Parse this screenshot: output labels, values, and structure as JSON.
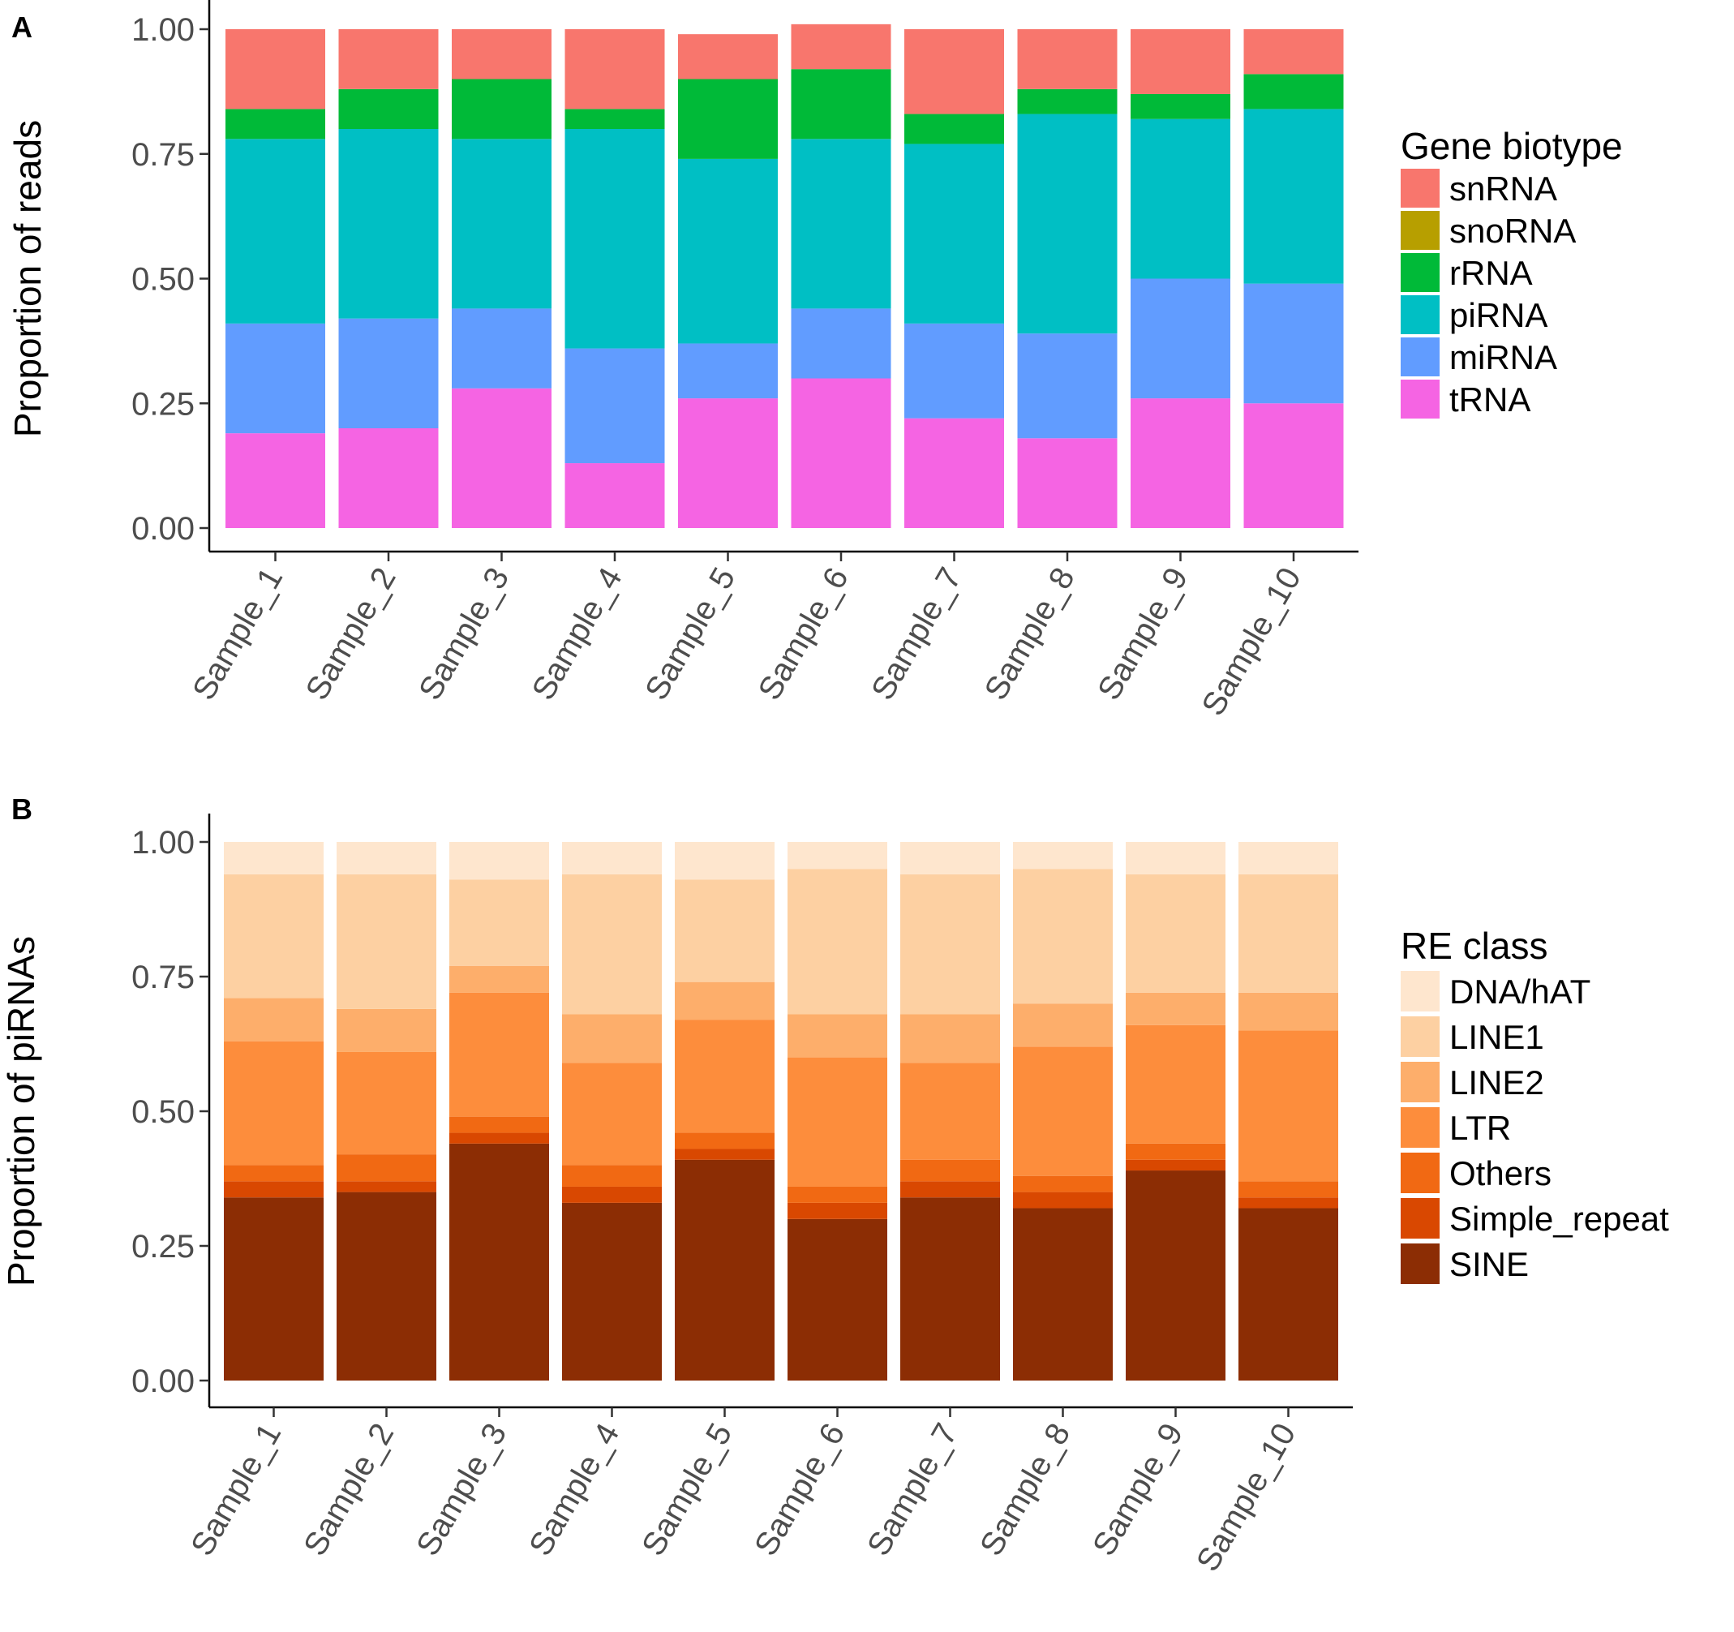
{
  "chart_data": [
    {
      "panel": "A",
      "type": "bar",
      "stacked": true,
      "title": "",
      "xlabel": "",
      "ylabel": "Proportion of reads",
      "ylim": [
        0,
        1
      ],
      "yticks": [
        "0.00",
        "0.25",
        "0.50",
        "0.75",
        "1.00"
      ],
      "categories": [
        "Sample_1",
        "Sample_2",
        "Sample_3",
        "Sample_4",
        "Sample_5",
        "Sample_6",
        "Sample_7",
        "Sample_8",
        "Sample_9",
        "Sample_10"
      ],
      "legend": {
        "title": "Gene biotype",
        "placement": "right"
      },
      "series": [
        {
          "name": "snRNA",
          "color": "#F8766D",
          "values": [
            0.16,
            0.12,
            0.1,
            0.16,
            0.09,
            0.09,
            0.17,
            0.12,
            0.13,
            0.09
          ]
        },
        {
          "name": "snoRNA",
          "color": "#B79F00",
          "values": [
            0,
            0,
            0,
            0,
            0,
            0,
            0,
            0,
            0,
            0
          ]
        },
        {
          "name": "rRNA",
          "color": "#00BA38",
          "values": [
            0.06,
            0.08,
            0.12,
            0.04,
            0.16,
            0.14,
            0.06,
            0.05,
            0.05,
            0.07
          ]
        },
        {
          "name": "piRNA",
          "color": "#00BFC4",
          "values": [
            0.37,
            0.38,
            0.34,
            0.44,
            0.37,
            0.34,
            0.36,
            0.44,
            0.32,
            0.35
          ]
        },
        {
          "name": "miRNA",
          "color": "#619CFF",
          "values": [
            0.22,
            0.22,
            0.16,
            0.23,
            0.11,
            0.14,
            0.19,
            0.21,
            0.24,
            0.24
          ]
        },
        {
          "name": "tRNA",
          "color": "#F564E3",
          "values": [
            0.19,
            0.2,
            0.28,
            0.13,
            0.26,
            0.3,
            0.22,
            0.18,
            0.26,
            0.25
          ]
        }
      ]
    },
    {
      "panel": "B",
      "type": "bar",
      "stacked": true,
      "title": "",
      "xlabel": "",
      "ylabel": "Proportion of piRNAs",
      "ylim": [
        0,
        1
      ],
      "yticks": [
        "0.00",
        "0.25",
        "0.50",
        "0.75",
        "1.00"
      ],
      "categories": [
        "Sample_1",
        "Sample_2",
        "Sample_3",
        "Sample_4",
        "Sample_5",
        "Sample_6",
        "Sample_7",
        "Sample_8",
        "Sample_9",
        "Sample_10"
      ],
      "legend": {
        "title": "RE class",
        "placement": "right"
      },
      "series": [
        {
          "name": "DNA/hAT",
          "color": "#FEE6CE",
          "values": [
            0.06,
            0.06,
            0.07,
            0.06,
            0.07,
            0.05,
            0.06,
            0.05,
            0.06,
            0.06
          ]
        },
        {
          "name": "LINE1",
          "color": "#FDD0A2",
          "values": [
            0.23,
            0.25,
            0.16,
            0.26,
            0.19,
            0.27,
            0.26,
            0.25,
            0.22,
            0.22
          ]
        },
        {
          "name": "LINE2",
          "color": "#FDAE6B",
          "values": [
            0.08,
            0.08,
            0.05,
            0.09,
            0.07,
            0.08,
            0.09,
            0.08,
            0.06,
            0.07
          ]
        },
        {
          "name": "LTR",
          "color": "#FD8D3C",
          "values": [
            0.23,
            0.19,
            0.23,
            0.19,
            0.21,
            0.24,
            0.18,
            0.24,
            0.22,
            0.28
          ]
        },
        {
          "name": "Others",
          "color": "#F16913",
          "values": [
            0.03,
            0.05,
            0.03,
            0.04,
            0.03,
            0.03,
            0.04,
            0.03,
            0.03,
            0.03
          ]
        },
        {
          "name": "Simple_repeat",
          "color": "#D94801",
          "values": [
            0.03,
            0.02,
            0.02,
            0.03,
            0.02,
            0.03,
            0.03,
            0.03,
            0.02,
            0.02
          ]
        },
        {
          "name": "SINE",
          "color": "#8C2D04",
          "values": [
            0.34,
            0.35,
            0.44,
            0.33,
            0.41,
            0.3,
            0.34,
            0.32,
            0.39,
            0.32
          ]
        }
      ]
    }
  ]
}
